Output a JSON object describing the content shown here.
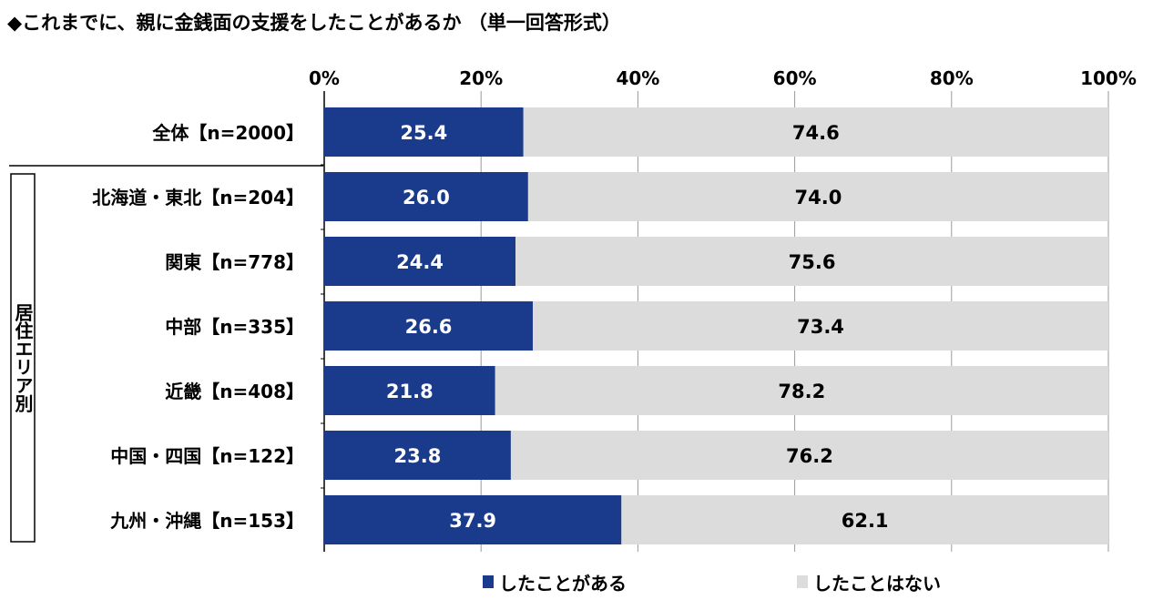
{
  "chart_data": {
    "type": "bar",
    "orientation": "horizontal",
    "stacked": true,
    "title": "◆これまでに、親に金銭面の支援をしたことがあるか （単一回答形式）",
    "x_ticks": [
      "0%",
      "20%",
      "40%",
      "60%",
      "80%",
      "100%"
    ],
    "xlim": [
      0,
      100
    ],
    "group_label": "居住エリア別",
    "categories": [
      "全体【n=2000】",
      "北海道・東北【n=204】",
      "関東【n=778】",
      "中部【n=335】",
      "近畿【n=408】",
      "中国・四国【n=122】",
      "九州・沖縄【n=153】"
    ],
    "series": [
      {
        "name": "したことがある",
        "color": "#1a3a8c",
        "values": [
          25.4,
          26.0,
          24.4,
          26.6,
          21.8,
          23.8,
          37.9
        ],
        "labels": [
          "25.4",
          "26.0",
          "24.4",
          "26.6",
          "21.8",
          "23.8",
          "37.9"
        ]
      },
      {
        "name": "したことはない",
        "color": "#dcdcdc",
        "values": [
          74.6,
          74.0,
          75.6,
          73.4,
          78.2,
          76.2,
          62.1
        ],
        "labels": [
          "74.6",
          "74.0",
          "75.6",
          "73.4",
          "78.2",
          "76.2",
          "62.1"
        ]
      }
    ],
    "grid": true,
    "legend_position": "bottom"
  }
}
